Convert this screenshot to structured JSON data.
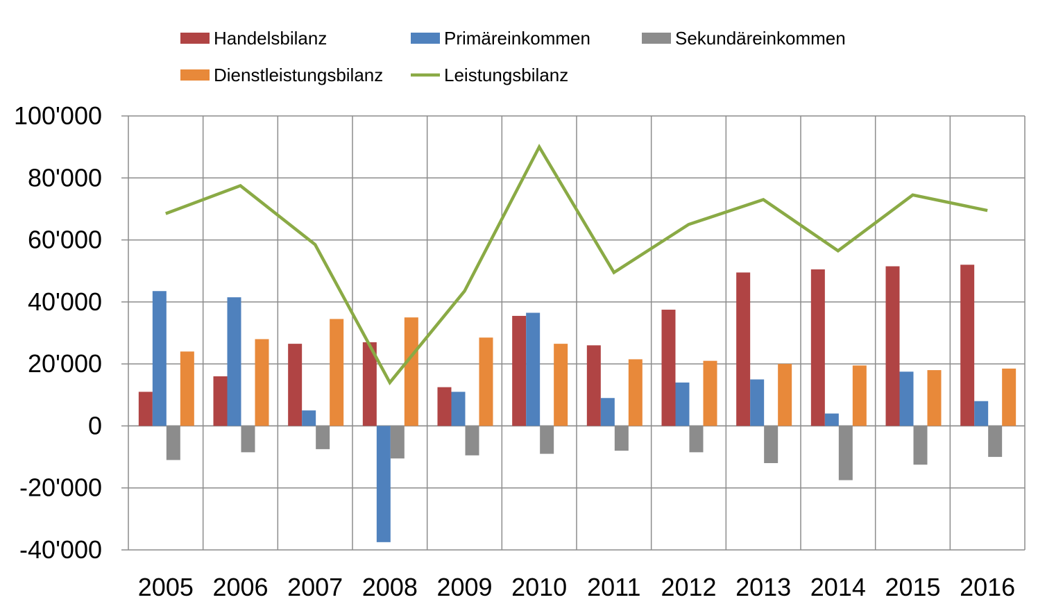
{
  "chart_data": {
    "type": "bar",
    "categories": [
      "2005",
      "2006",
      "2007",
      "2008",
      "2009",
      "2010",
      "2011",
      "2012",
      "2013",
      "2014",
      "2015",
      "2016"
    ],
    "ylim": [
      -40000,
      100000
    ],
    "yticks": [
      100000,
      80000,
      60000,
      40000,
      20000,
      0,
      -20000,
      -40000
    ],
    "ytick_labels": [
      "100'000",
      "80'000",
      "60'000",
      "40'000",
      "20'000",
      "0",
      "-20'000",
      "-40'000"
    ],
    "grid": true,
    "legend_position": "top",
    "series": [
      {
        "name": "Handelsbilanz",
        "kind": "bar",
        "color": "#b04444",
        "values": [
          11000,
          16000,
          26500,
          27000,
          12500,
          35500,
          26000,
          37500,
          49500,
          50500,
          51500,
          52000
        ]
      },
      {
        "name": "Primäreinkommen",
        "kind": "bar",
        "color": "#4f81bd",
        "values": [
          43500,
          41500,
          5000,
          -37500,
          11000,
          36500,
          9000,
          14000,
          15000,
          4000,
          17500,
          8000
        ]
      },
      {
        "name": "Sekundäreinkommen",
        "kind": "bar",
        "color": "#8c8c8c",
        "values": [
          -11000,
          -8500,
          -7500,
          -10500,
          -9500,
          -9000,
          -8000,
          -8500,
          -12000,
          -17500,
          -12500,
          -10000
        ]
      },
      {
        "name": "Dienstleistungsbilanz",
        "kind": "bar",
        "color": "#e8893a",
        "values": [
          24000,
          28000,
          34500,
          35000,
          28500,
          26500,
          21500,
          21000,
          20000,
          19500,
          18000,
          18500
        ]
      },
      {
        "name": "Leistungsbilanz",
        "kind": "line",
        "color": "#8aaa45",
        "values": [
          68500,
          77500,
          58500,
          14000,
          43500,
          90000,
          49500,
          65000,
          73000,
          56500,
          74500,
          69500
        ]
      }
    ]
  }
}
